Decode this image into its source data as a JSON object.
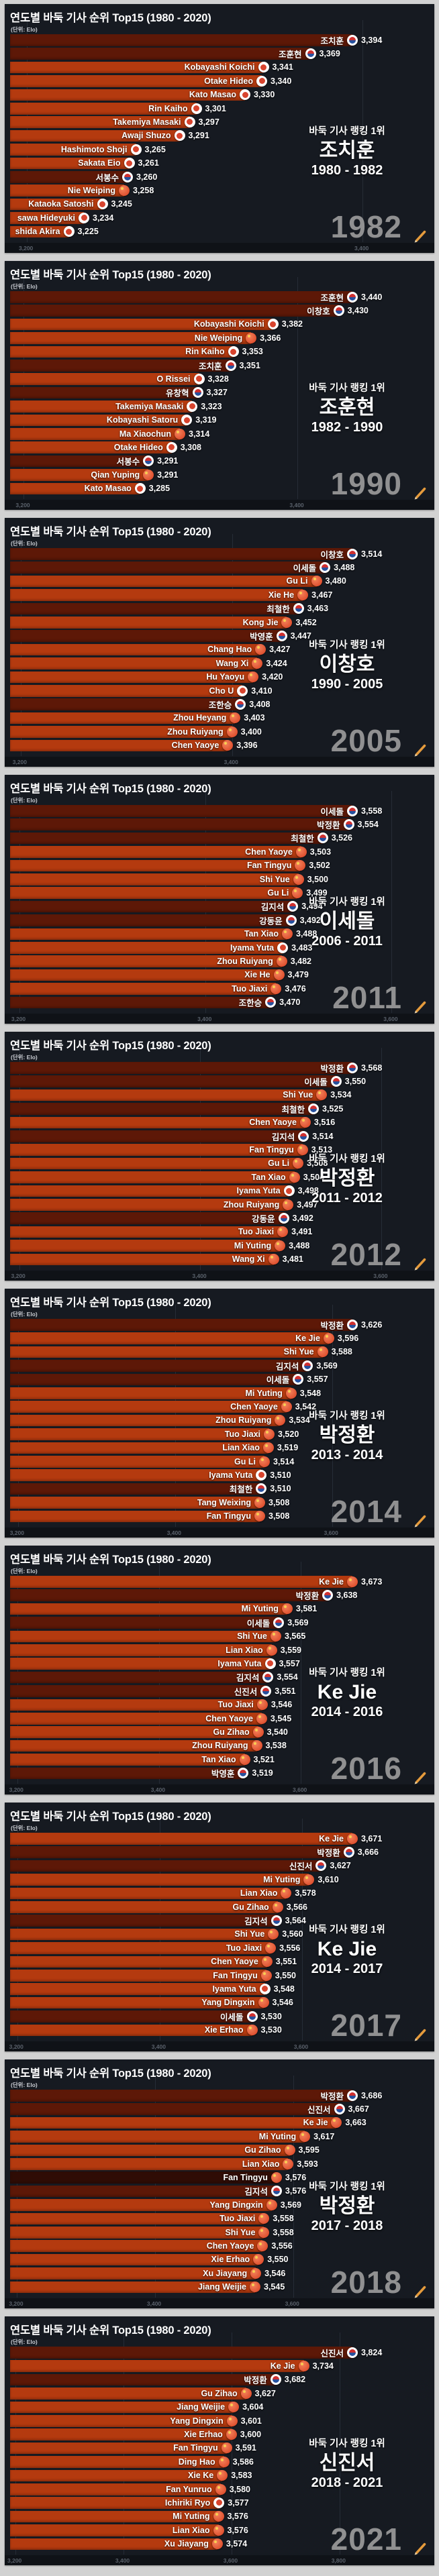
{
  "page": {
    "background": "#d2d2d2"
  },
  "panel_common": {
    "title": "연도별 바둑 기사 순위 Top15 (1980 - 2020)",
    "subtitle": "(단위: Elo)",
    "ranking_caption": "바둑 기사 랭킹 1위",
    "colors": {
      "panel_bg": "#161a21",
      "bar_bright": "#b43a0f",
      "bar_dark": "#5d1807",
      "bar_deep": "#2f0c05",
      "gridline": "#262c36",
      "year_text": "#9b9b9b",
      "pencil_orange": "#e59b3c"
    }
  },
  "chart_data": [
    {
      "type": "bar",
      "year": "1982",
      "champion": {
        "name": "조치훈",
        "period": "1980 - 1982"
      },
      "ticks": [
        3200,
        3400
      ],
      "rows": [
        {
          "name": "조치훈",
          "flag": "kr",
          "value": 3394
        },
        {
          "name": "조훈현",
          "flag": "kr",
          "value": 3369
        },
        {
          "name": "Kobayashi Koichi",
          "flag": "jp",
          "value": 3341
        },
        {
          "name": "Otake Hideo",
          "flag": "jp",
          "value": 3340
        },
        {
          "name": "Kato Masao",
          "flag": "jp",
          "value": 3330
        },
        {
          "name": "Rin Kaiho",
          "flag": "jp",
          "value": 3301
        },
        {
          "name": "Takemiya Masaki",
          "flag": "jp",
          "value": 3297
        },
        {
          "name": "Awaji Shuzo",
          "flag": "jp",
          "value": 3291
        },
        {
          "name": "Hashimoto Shoji",
          "flag": "jp",
          "value": 3265
        },
        {
          "name": "Sakata Eio",
          "flag": "jp",
          "value": 3261
        },
        {
          "name": "서봉수",
          "flag": "kr",
          "value": 3260
        },
        {
          "name": "Nie Weiping",
          "flag": "cn",
          "value": 3258
        },
        {
          "name": "Kataoka Satoshi",
          "flag": "jp",
          "value": 3245
        },
        {
          "name": "sawa Hideyuki",
          "flag": "jp",
          "value": 3234
        },
        {
          "name": "shida Akira",
          "flag": "jp",
          "value": 3225
        }
      ]
    },
    {
      "type": "bar",
      "year": "1990",
      "champion": {
        "name": "조훈현",
        "period": "1982 - 1990"
      },
      "ticks": [
        3200,
        3400
      ],
      "rows": [
        {
          "name": "조훈현",
          "flag": "kr",
          "value": 3440
        },
        {
          "name": "이창호",
          "flag": "kr",
          "value": 3430
        },
        {
          "name": "Kobayashi Koichi",
          "flag": "jp",
          "value": 3382
        },
        {
          "name": "Nie Weiping",
          "flag": "cn",
          "value": 3366
        },
        {
          "name": "Rin Kaiho",
          "flag": "jp",
          "value": 3353
        },
        {
          "name": "조치훈",
          "flag": "kr",
          "value": 3351
        },
        {
          "name": "O Rissei",
          "flag": "jp",
          "value": 3328
        },
        {
          "name": "유창혁",
          "flag": "kr",
          "value": 3327
        },
        {
          "name": "Takemiya Masaki",
          "flag": "jp",
          "value": 3323
        },
        {
          "name": "Kobayashi Satoru",
          "flag": "jp",
          "value": 3319
        },
        {
          "name": "Ma Xiaochun",
          "flag": "cn",
          "value": 3314
        },
        {
          "name": "Otake Hideo",
          "flag": "jp",
          "value": 3308
        },
        {
          "name": "서봉수",
          "flag": "kr",
          "value": 3291
        },
        {
          "name": "Qian Yuping",
          "flag": "cn",
          "value": 3291
        },
        {
          "name": "Kato Masao",
          "flag": "jp",
          "value": 3285
        }
      ]
    },
    {
      "type": "bar",
      "year": "2005",
      "champion": {
        "name": "이창호",
        "period": "1990 - 2005"
      },
      "ticks": [
        3200,
        3400
      ],
      "rows": [
        {
          "name": "이창호",
          "flag": "kr",
          "value": 3514
        },
        {
          "name": "이세돌",
          "flag": "kr",
          "value": 3488
        },
        {
          "name": "Gu Li",
          "flag": "cn",
          "value": 3480
        },
        {
          "name": "Xie He",
          "flag": "cn",
          "value": 3467
        },
        {
          "name": "최철한",
          "flag": "kr",
          "value": 3463
        },
        {
          "name": "Kong Jie",
          "flag": "cn",
          "value": 3452
        },
        {
          "name": "박영훈",
          "flag": "kr",
          "value": 3447
        },
        {
          "name": "Chang Hao",
          "flag": "cn",
          "value": 3427
        },
        {
          "name": "Wang Xi",
          "flag": "cn",
          "value": 3424
        },
        {
          "name": "Hu Yaoyu",
          "flag": "cn",
          "value": 3420
        },
        {
          "name": "Cho U",
          "flag": "jp",
          "value": 3410
        },
        {
          "name": "조한승",
          "flag": "kr",
          "value": 3408
        },
        {
          "name": "Zhou Heyang",
          "flag": "cn",
          "value": 3403
        },
        {
          "name": "Zhou Ruiyang",
          "flag": "cn",
          "value": 3400
        },
        {
          "name": "Chen Yaoye",
          "flag": "cn",
          "value": 3396
        }
      ]
    },
    {
      "type": "bar",
      "year": "2011",
      "champion": {
        "name": "이세돌",
        "period": "2006 - 2011"
      },
      "ticks": [
        3200,
        3400,
        3600
      ],
      "rows": [
        {
          "name": "이세돌",
          "flag": "kr",
          "value": 3558
        },
        {
          "name": "박정환",
          "flag": "kr",
          "value": 3554
        },
        {
          "name": "최철한",
          "flag": "kr",
          "value": 3526
        },
        {
          "name": "Chen Yaoye",
          "flag": "cn",
          "value": 3503
        },
        {
          "name": "Fan Tingyu",
          "flag": "cn",
          "value": 3502
        },
        {
          "name": "Shi Yue",
          "flag": "cn",
          "value": 3500
        },
        {
          "name": "Gu Li",
          "flag": "cn",
          "value": 3499
        },
        {
          "name": "김지석",
          "flag": "kr",
          "value": 3494
        },
        {
          "name": "강동윤",
          "flag": "kr",
          "value": 3492
        },
        {
          "name": "Tan Xiao",
          "flag": "cn",
          "value": 3488
        },
        {
          "name": "Iyama Yuta",
          "flag": "jp",
          "value": 3483
        },
        {
          "name": "Zhou Ruiyang",
          "flag": "cn",
          "value": 3482
        },
        {
          "name": "Xie He",
          "flag": "cn",
          "value": 3479
        },
        {
          "name": "Tuo Jiaxi",
          "flag": "cn",
          "value": 3476
        },
        {
          "name": "조한승",
          "flag": "kr",
          "value": 3470
        }
      ]
    },
    {
      "type": "bar",
      "year": "2012",
      "champion": {
        "name": "박정환",
        "period": "2011 - 2012"
      },
      "ticks": [
        3200,
        3400,
        3600
      ],
      "rows": [
        {
          "name": "박정환",
          "flag": "kr",
          "value": 3568
        },
        {
          "name": "이세돌",
          "flag": "kr",
          "value": 3550
        },
        {
          "name": "Shi Yue",
          "flag": "cn",
          "value": 3534
        },
        {
          "name": "최철한",
          "flag": "kr",
          "value": 3525
        },
        {
          "name": "Chen Yaoye",
          "flag": "cn",
          "value": 3516
        },
        {
          "name": "김지석",
          "flag": "kr",
          "value": 3514
        },
        {
          "name": "Fan Tingyu",
          "flag": "cn",
          "value": 3513
        },
        {
          "name": "Gu Li",
          "flag": "cn",
          "value": 3508
        },
        {
          "name": "Tan Xiao",
          "flag": "cn",
          "value": 3504
        },
        {
          "name": "Iyama Yuta",
          "flag": "jp",
          "value": 3498
        },
        {
          "name": "Zhou Ruiyang",
          "flag": "cn",
          "value": 3497
        },
        {
          "name": "강동윤",
          "flag": "kr",
          "value": 3492
        },
        {
          "name": "Tuo Jiaxi",
          "flag": "cn",
          "value": 3491
        },
        {
          "name": "Mi Yuting",
          "flag": "cn",
          "value": 3488
        },
        {
          "name": "Wang Xi",
          "flag": "cn",
          "value": 3481
        }
      ]
    },
    {
      "type": "bar",
      "year": "2014",
      "champion": {
        "name": "박정환",
        "period": "2013 - 2014"
      },
      "ticks": [
        3200,
        3400,
        3600
      ],
      "rows": [
        {
          "name": "박정환",
          "flag": "kr",
          "value": 3626
        },
        {
          "name": "Ke Jie",
          "flag": "cn",
          "value": 3596
        },
        {
          "name": "Shi Yue",
          "flag": "cn",
          "value": 3588
        },
        {
          "name": "김지석",
          "flag": "kr",
          "value": 3569
        },
        {
          "name": "이세돌",
          "flag": "kr",
          "value": 3557
        },
        {
          "name": "Mi Yuting",
          "flag": "cn",
          "value": 3548
        },
        {
          "name": "Chen Yaoye",
          "flag": "cn",
          "value": 3542
        },
        {
          "name": "Zhou Ruiyang",
          "flag": "cn",
          "value": 3534
        },
        {
          "name": "Tuo Jiaxi",
          "flag": "cn",
          "value": 3520
        },
        {
          "name": "Lian Xiao",
          "flag": "cn",
          "value": 3519
        },
        {
          "name": "Gu Li",
          "flag": "cn",
          "value": 3514
        },
        {
          "name": "Iyama Yuta",
          "flag": "jp",
          "value": 3510
        },
        {
          "name": "최철한",
          "flag": "kr",
          "value": 3510
        },
        {
          "name": "Tang Weixing",
          "flag": "cn",
          "value": 3508
        },
        {
          "name": "Fan Tingyu",
          "flag": "cn",
          "value": 3508
        }
      ]
    },
    {
      "type": "bar",
      "year": "2016",
      "champion": {
        "name": "Ke Jie",
        "period": "2014 - 2016"
      },
      "ticks": [
        3200,
        3400,
        3600
      ],
      "rows": [
        {
          "name": "Ke Jie",
          "flag": "cn",
          "value": 3673
        },
        {
          "name": "박정환",
          "flag": "kr",
          "value": 3638
        },
        {
          "name": "Mi Yuting",
          "flag": "cn",
          "value": 3581
        },
        {
          "name": "이세돌",
          "flag": "kr",
          "value": 3569
        },
        {
          "name": "Shi Yue",
          "flag": "cn",
          "value": 3565
        },
        {
          "name": "Lian Xiao",
          "flag": "cn",
          "value": 3559
        },
        {
          "name": "Iyama Yuta",
          "flag": "jp",
          "value": 3557
        },
        {
          "name": "김지석",
          "flag": "kr",
          "value": 3554
        },
        {
          "name": "신진서",
          "flag": "kr",
          "value": 3551
        },
        {
          "name": "Tuo Jiaxi",
          "flag": "cn",
          "value": 3546
        },
        {
          "name": "Chen Yaoye",
          "flag": "cn",
          "value": 3545
        },
        {
          "name": "Gu Zihao",
          "flag": "cn",
          "value": 3540
        },
        {
          "name": "Zhou Ruiyang",
          "flag": "cn",
          "value": 3538
        },
        {
          "name": "Tan Xiao",
          "flag": "cn",
          "value": 3521
        },
        {
          "name": "박영훈",
          "flag": "kr",
          "value": 3519
        }
      ]
    },
    {
      "type": "bar",
      "year": "2017",
      "champion": {
        "name": "Ke Jie",
        "period": "2014 - 2017"
      },
      "ticks": [
        3200,
        3400,
        3600
      ],
      "rows": [
        {
          "name": "Ke Jie",
          "flag": "cn",
          "value": 3671
        },
        {
          "name": "박정환",
          "flag": "kr",
          "value": 3666
        },
        {
          "name": "신진서",
          "flag": "kr",
          "value": 3627
        },
        {
          "name": "Mi Yuting",
          "flag": "cn",
          "value": 3610
        },
        {
          "name": "Lian Xiao",
          "flag": "cn",
          "value": 3578
        },
        {
          "name": "Gu Zihao",
          "flag": "cn",
          "value": 3566
        },
        {
          "name": "김지석",
          "flag": "kr",
          "value": 3564
        },
        {
          "name": "Shi Yue",
          "flag": "cn",
          "value": 3560
        },
        {
          "name": "Tuo Jiaxi",
          "flag": "cn",
          "value": 3556
        },
        {
          "name": "Chen Yaoye",
          "flag": "cn",
          "value": 3551
        },
        {
          "name": "Fan Tingyu",
          "flag": "cn",
          "value": 3550
        },
        {
          "name": "Iyama Yuta",
          "flag": "jp",
          "value": 3548
        },
        {
          "name": "Yang Dingxin",
          "flag": "cn",
          "value": 3546
        },
        {
          "name": "이세돌",
          "flag": "kr",
          "value": 3530
        },
        {
          "name": "Xie Erhao",
          "flag": "cn",
          "value": 3530
        }
      ]
    },
    {
      "type": "bar",
      "year": "2018",
      "champion": {
        "name": "박정환",
        "period": "2017 - 2018"
      },
      "ticks": [
        3200,
        3400,
        3600
      ],
      "rows": [
        {
          "name": "박정환",
          "flag": "kr",
          "value": 3686
        },
        {
          "name": "신진서",
          "flag": "kr",
          "value": 3667
        },
        {
          "name": "Ke Jie",
          "flag": "cn",
          "value": 3663
        },
        {
          "name": "Mi Yuting",
          "flag": "cn",
          "value": 3617
        },
        {
          "name": "Gu Zihao",
          "flag": "cn",
          "value": 3595
        },
        {
          "name": "Lian Xiao",
          "flag": "cn",
          "value": 3593
        },
        {
          "name": "Fan Tingyu",
          "flag": "cn",
          "value": 3576,
          "shade": "deep"
        },
        {
          "name": "김지석",
          "flag": "kr",
          "value": 3576
        },
        {
          "name": "Yang Dingxin",
          "flag": "cn",
          "value": 3569
        },
        {
          "name": "Tuo Jiaxi",
          "flag": "cn",
          "value": 3558
        },
        {
          "name": "Shi Yue",
          "flag": "cn",
          "value": 3558
        },
        {
          "name": "Chen Yaoye",
          "flag": "cn",
          "value": 3556
        },
        {
          "name": "Xie Erhao",
          "flag": "cn",
          "value": 3550
        },
        {
          "name": "Xu Jiayang",
          "flag": "cn",
          "value": 3546
        },
        {
          "name": "Jiang Weijie",
          "flag": "cn",
          "value": 3545
        }
      ]
    },
    {
      "type": "bar",
      "year": "2021",
      "champion": {
        "name": "신진서",
        "period": "2018 - 2021"
      },
      "ticks": [
        3200,
        3400,
        3600,
        3800
      ],
      "rows": [
        {
          "name": "신진서",
          "flag": "kr",
          "value": 3824
        },
        {
          "name": "Ke Jie",
          "flag": "cn",
          "value": 3734
        },
        {
          "name": "박정환",
          "flag": "kr",
          "value": 3682
        },
        {
          "name": "Gu Zihao",
          "flag": "cn",
          "value": 3627
        },
        {
          "name": "Jiang Weijie",
          "flag": "cn",
          "value": 3604
        },
        {
          "name": "Yang Dingxin",
          "flag": "cn",
          "value": 3601
        },
        {
          "name": "Xie Erhao",
          "flag": "cn",
          "value": 3600
        },
        {
          "name": "Fan Tingyu",
          "flag": "cn",
          "value": 3591
        },
        {
          "name": "Ding Hao",
          "flag": "cn",
          "value": 3586
        },
        {
          "name": "Xie Ke",
          "flag": "cn",
          "value": 3583
        },
        {
          "name": "Fan Yunruo",
          "flag": "cn",
          "value": 3580
        },
        {
          "name": "Ichiriki Ryo",
          "flag": "jp",
          "value": 3577
        },
        {
          "name": "Mi Yuting",
          "flag": "cn",
          "value": 3576
        },
        {
          "name": "Lian Xiao",
          "flag": "cn",
          "value": 3576
        },
        {
          "name": "Xu Jiayang",
          "flag": "cn",
          "value": 3574
        }
      ]
    }
  ]
}
